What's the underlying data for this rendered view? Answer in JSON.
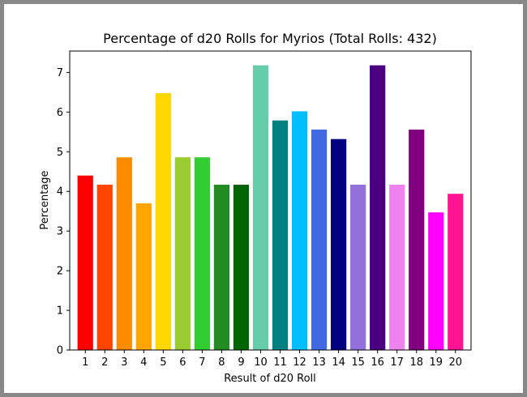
{
  "chart_data": {
    "type": "bar",
    "title": "Percentage of d20 Rolls for Myrios (Total Rolls: 432)",
    "xlabel": "Result of d20 Roll",
    "ylabel": "Percentage",
    "categories": [
      "1",
      "2",
      "3",
      "4",
      "5",
      "6",
      "7",
      "8",
      "9",
      "10",
      "11",
      "12",
      "13",
      "14",
      "15",
      "16",
      "17",
      "18",
      "19",
      "20"
    ],
    "values": [
      4.4,
      4.17,
      4.86,
      3.7,
      6.48,
      4.86,
      4.86,
      4.17,
      4.17,
      7.18,
      5.79,
      6.02,
      5.56,
      5.32,
      4.17,
      7.18,
      4.17,
      5.56,
      3.47,
      3.94
    ],
    "colors": [
      "#ff0000",
      "#ff4500",
      "#ff8c00",
      "#ffa500",
      "#ffd700",
      "#9acd32",
      "#32cd32",
      "#228b22",
      "#006400",
      "#66cdaa",
      "#008080",
      "#00bfff",
      "#4169e1",
      "#000080",
      "#9370db",
      "#4b0082",
      "#ee82ee",
      "#800080",
      "#ff00ff",
      "#ff1493"
    ],
    "yticks": [
      "0",
      "1",
      "2",
      "3",
      "4",
      "5",
      "6",
      "7"
    ],
    "ylim": [
      0,
      7.54
    ],
    "grid": false,
    "legend": "none"
  }
}
